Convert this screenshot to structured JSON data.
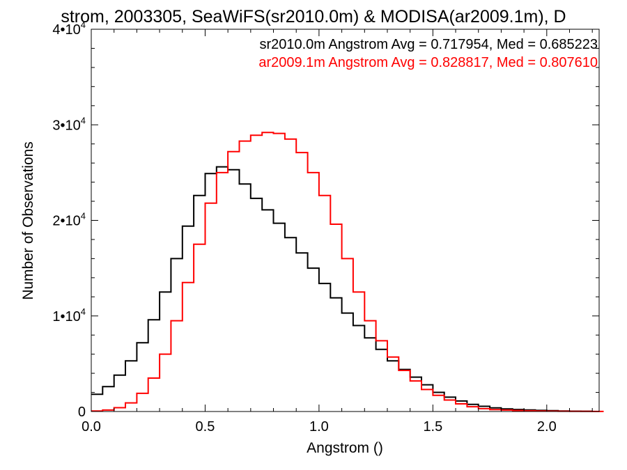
{
  "chart_data": {
    "type": "line",
    "title": "strom, 2003305, SeaWiFS(sr2010.0m) & MODISA(ar2009.1m), D",
    "xlabel": "Angstrom ()",
    "ylabel": "Number of Observations",
    "xlim": [
      0.0,
      2.23
    ],
    "ylim": [
      0,
      40000
    ],
    "x_ticks": [
      {
        "value": 0.0,
        "label": "0.0"
      },
      {
        "value": 0.5,
        "label": "0.5"
      },
      {
        "value": 1.0,
        "label": "1.0"
      },
      {
        "value": 1.5,
        "label": "1.5"
      },
      {
        "value": 2.0,
        "label": "2.0"
      }
    ],
    "y_ticks": [
      {
        "value": 0,
        "base": "0",
        "exp": ""
      },
      {
        "value": 10000,
        "base": "1•10",
        "exp": "4"
      },
      {
        "value": 20000,
        "base": "2•10",
        "exp": "4"
      },
      {
        "value": 30000,
        "base": "3•10",
        "exp": "4"
      },
      {
        "value": 40000,
        "base": "4•10",
        "exp": "4"
      }
    ],
    "grid": false,
    "step": true,
    "annotations": [
      {
        "text": "sr2010.0m Angstrom Avg = 0.717954, Med = 0.685223",
        "color": "#000000"
      },
      {
        "text": "ar2009.1m Angstrom Avg = 0.828817, Med = 0.807610",
        "color": "#ff0000"
      }
    ],
    "series": [
      {
        "color": "#000000",
        "x": [
          0.0,
          0.05,
          0.1,
          0.15,
          0.2,
          0.25,
          0.3,
          0.35,
          0.4,
          0.45,
          0.5,
          0.55,
          0.6,
          0.65,
          0.7,
          0.75,
          0.8,
          0.85,
          0.9,
          0.95,
          1.0,
          1.05,
          1.1,
          1.15,
          1.2,
          1.25,
          1.3,
          1.35,
          1.4,
          1.45,
          1.5,
          1.55,
          1.6,
          1.65,
          1.7,
          1.75,
          1.8,
          1.85,
          1.9,
          1.95,
          2.0,
          2.05,
          2.1,
          2.15
        ],
        "y": [
          1800,
          2600,
          3800,
          5300,
          7200,
          9600,
          12500,
          16000,
          19400,
          22600,
          24900,
          25600,
          25300,
          23800,
          22300,
          21100,
          19700,
          18200,
          16600,
          15000,
          13400,
          11900,
          10300,
          9000,
          7700,
          6500,
          5300,
          4400,
          3600,
          2800,
          2000,
          1500,
          1100,
          750,
          550,
          380,
          280,
          210,
          160,
          120,
          90,
          60,
          40,
          30
        ]
      },
      {
        "color": "#ff0000",
        "x": [
          0.0,
          0.05,
          0.1,
          0.15,
          0.2,
          0.25,
          0.3,
          0.35,
          0.4,
          0.45,
          0.5,
          0.55,
          0.6,
          0.65,
          0.7,
          0.75,
          0.8,
          0.85,
          0.9,
          0.95,
          1.0,
          1.05,
          1.1,
          1.15,
          1.2,
          1.25,
          1.3,
          1.35,
          1.4,
          1.45,
          1.5,
          1.55,
          1.6,
          1.65,
          1.7,
          1.75,
          1.8,
          1.85,
          1.9,
          1.95,
          2.0,
          2.05,
          2.1,
          2.15,
          2.2
        ],
        "y": [
          50,
          150,
          400,
          900,
          1900,
          3500,
          6000,
          9500,
          13500,
          17500,
          21800,
          25000,
          27200,
          28300,
          28900,
          29200,
          29100,
          28500,
          27100,
          25000,
          22600,
          19600,
          16000,
          12500,
          9500,
          7400,
          5700,
          4300,
          3200,
          2300,
          1700,
          1200,
          800,
          500,
          300,
          200,
          150,
          110,
          80,
          60,
          40,
          30,
          20,
          15,
          10
        ]
      }
    ]
  }
}
